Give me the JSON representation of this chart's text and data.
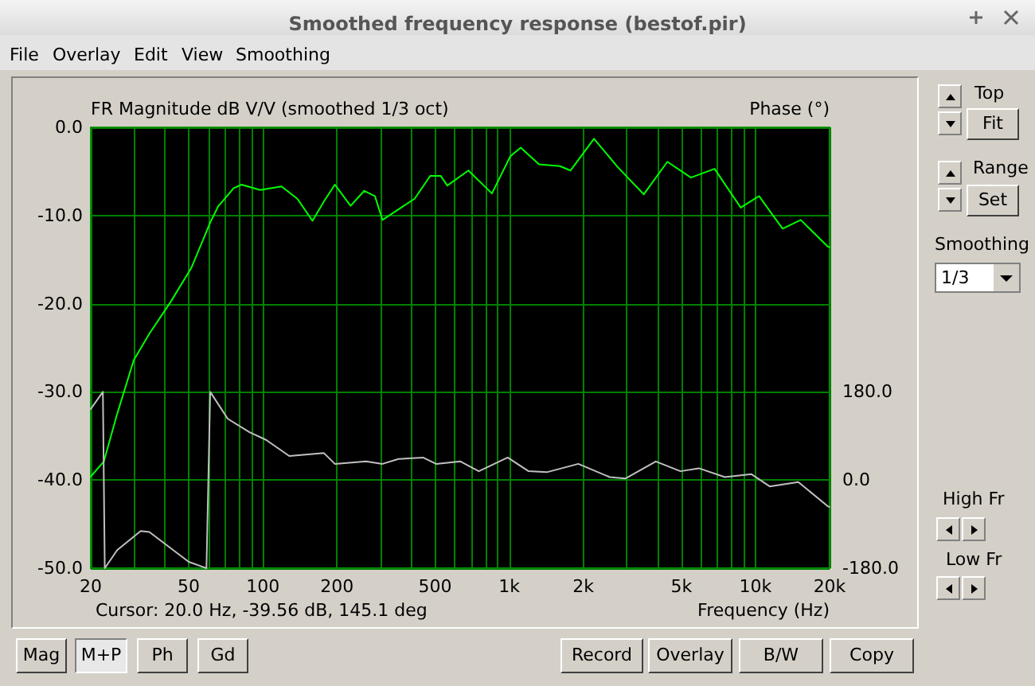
{
  "chart_data": {
    "type": "line",
    "title": "Smoothed frequency response (bestof.pir)",
    "ylabel": "FR Magnitude dB V/V (smoothed 1/3 oct)",
    "y2label": "Phase (°)",
    "xlabel": "Frequency (Hz)",
    "annotations": [
      "Cursor: 20.0 Hz, -39.56 dB, 145.1 deg",
      "File",
      "Overlay",
      "Edit",
      "View",
      "Smoothing",
      "Top",
      "Fit",
      "Range",
      "Set",
      "Smoothing",
      "1/3",
      "High Fr",
      "Low Fr",
      "Mag",
      "M+P",
      "Ph",
      "Gd",
      "Record",
      "Overlay",
      "B/W",
      "Copy"
    ],
    "log": "x",
    "xlim": [
      20,
      20000
    ],
    "xticks": [
      20,
      {
        "value": 30,
        "label": null
      },
      {
        "value": 40,
        "label": null
      },
      50,
      {
        "value": 60,
        "label": null
      },
      {
        "value": 70,
        "label": null
      },
      {
        "value": 80,
        "label": null
      },
      {
        "value": 90,
        "label": null
      },
      100,
      200,
      {
        "value": 300,
        "label": null
      },
      {
        "value": 400,
        "label": null
      },
      500,
      {
        "value": 600,
        "label": null
      },
      {
        "value": 700,
        "label": null
      },
      {
        "value": 800,
        "label": null
      },
      {
        "value": 900,
        "label": null
      },
      {
        "value": 1000,
        "label": "1k"
      },
      {
        "value": 2000,
        "label": "2k"
      },
      {
        "value": 3000,
        "label": null
      },
      {
        "value": 4000,
        "label": null
      },
      {
        "value": 5000,
        "label": "5k"
      },
      {
        "value": 6000,
        "label": null
      },
      {
        "value": 7000,
        "label": null
      },
      {
        "value": 8000,
        "label": null
      },
      {
        "value": 9000,
        "label": null
      },
      {
        "value": 10000,
        "label": "10k"
      },
      {
        "value": 20000,
        "label": "20k"
      }
    ],
    "ylim": [
      -50,
      0
    ],
    "yticks": [
      {
        "value": 0,
        "label": "0.0"
      },
      {
        "value": -10,
        "label": "-10.0"
      },
      {
        "value": -20,
        "label": "-20.0"
      },
      {
        "value": -30,
        "label": "-30.0"
      },
      {
        "value": -40,
        "label": "-40.0"
      },
      {
        "value": -50,
        "label": "-50.0"
      }
    ],
    "y2lim": [
      -180,
      720
    ],
    "y2ticks": [
      {
        "value": -180,
        "label": "-180.0"
      },
      {
        "value": 0,
        "label": "0.0"
      },
      {
        "value": 180,
        "label": "180.0"
      }
    ],
    "grid": true,
    "marker": "none",
    "line_style": "solid",
    "series": [
      {
        "color": "#00ff00",
        "x": [
          20,
          22.6,
          25.6,
          29.9,
          34.6,
          42.2,
          51.3,
          61.1,
          65.7,
          76.1,
          82,
          97.5,
          119,
          138,
          159,
          177,
          196,
          227,
          258,
          285,
          306,
          355,
          413,
          478,
          527,
          561,
          683,
          851,
          1010,
          1114,
          1322,
          1608,
          1773,
          2210,
          2757,
          3521,
          4388,
          5470,
          6823,
          8713,
          10340,
          12890,
          15270,
          19600,
          20000
        ],
        "values": [
          -39.6,
          -37.9,
          -32.5,
          -26.4,
          -23.4,
          -19.8,
          -15.9,
          -10.8,
          -9.0,
          -6.9,
          -6.5,
          -7.1,
          -6.7,
          -8.1,
          -10.6,
          -8.4,
          -6.5,
          -8.9,
          -7.2,
          -7.8,
          -10.5,
          -9.3,
          -8.1,
          -5.5,
          -5.5,
          -6.6,
          -4.9,
          -7.5,
          -3.3,
          -2.3,
          -4.2,
          -4.4,
          -4.9,
          -1.3,
          -4.5,
          -7.6,
          -3.9,
          -5.7,
          -4.7,
          -9.1,
          -7.8,
          -11.5,
          -10.5,
          -13.5,
          -13.6
        ]
      },
      {
        "color": "#c0c0c0",
        "axis": "y2",
        "x": [
          20,
          22.4,
          22.8,
          25.6,
          31.9,
          34.6,
          42.2,
          50,
          59,
          61.1,
          72,
          88,
          103,
          128,
          177,
          196,
          262,
          306,
          355,
          447,
          505,
          634,
          753,
          986,
          1199,
          1422,
          1909,
          2561,
          2962,
          3939,
          4962,
          5889,
          7514,
          9632,
          11420,
          14930,
          19600,
          20000
        ],
        "values": [
          145,
          180,
          -180,
          -143,
          -104,
          -106,
          -139,
          -167,
          -180,
          180,
          125,
          98,
          82,
          49,
          55,
          33,
          38,
          33,
          43,
          46,
          33,
          38,
          18,
          46,
          18,
          16,
          33,
          6,
          3,
          38,
          18,
          24,
          6,
          12,
          -13,
          -4,
          -53,
          -55
        ]
      }
    ]
  }
}
